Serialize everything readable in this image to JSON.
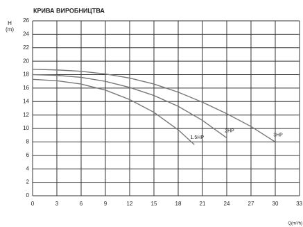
{
  "chart_data": {
    "type": "line",
    "title": "КРИВА ВИРОБНИЦТВА",
    "y_label": "H\n(m)",
    "x_label": "Q(m³/h)",
    "xlim": [
      0,
      33
    ],
    "ylim": [
      0,
      26
    ],
    "xticks": [
      0,
      3,
      6,
      9,
      12,
      15,
      18,
      21,
      24,
      27,
      30,
      33
    ],
    "yticks": [
      0,
      2,
      4,
      6,
      8,
      10,
      12,
      14,
      16,
      18,
      20,
      22,
      24,
      26
    ],
    "grid": true,
    "series": [
      {
        "name": "1.5HP",
        "color": "#777777",
        "x": [
          0,
          3,
          6,
          9,
          12,
          15,
          18,
          20
        ],
        "values": [
          17.3,
          17.1,
          16.6,
          15.7,
          14.3,
          12.4,
          9.8,
          7.6
        ]
      },
      {
        "name": "2HP",
        "color": "#777777",
        "x": [
          0,
          3,
          6,
          9,
          12,
          15,
          18,
          21,
          24
        ],
        "values": [
          18,
          17.9,
          17.6,
          17,
          16.1,
          14.9,
          13.3,
          11.2,
          8.6
        ]
      },
      {
        "name": "3HP",
        "color": "#777777",
        "x": [
          0,
          3,
          6,
          9,
          12,
          15,
          18,
          21,
          24,
          27,
          30
        ],
        "values": [
          18.8,
          18.7,
          18.5,
          18.1,
          17.5,
          16.6,
          15.4,
          13.9,
          12.2,
          10.3,
          8
        ]
      }
    ]
  }
}
